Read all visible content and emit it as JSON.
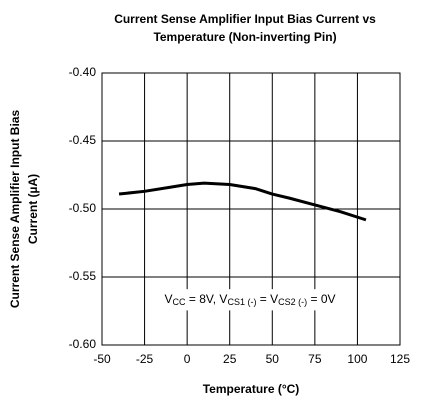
{
  "chart_data": {
    "type": "line",
    "title": [
      "Current Sense Amplifier Input Bias Current vs",
      "Temperature (Non-inverting Pin)"
    ],
    "ylabel": [
      "Current Sense Amplifier Input Bias",
      "Current (µA)"
    ],
    "xlabel": "Temperature (°C)",
    "annotation": [
      "V",
      "CC",
      " = 8V, V",
      "CS1 (-)",
      " = V",
      "CS2 (-)",
      " = 0V"
    ],
    "x": [
      -40,
      -25,
      -10,
      0,
      10,
      25,
      40,
      50,
      60,
      75,
      90,
      105
    ],
    "series": [
      {
        "name": "Input Bias Current",
        "color": "#000000",
        "values": [
          -0.489,
          -0.487,
          -0.484,
          -0.482,
          -0.481,
          -0.482,
          -0.485,
          -0.489,
          -0.492,
          -0.497,
          -0.502,
          -0.508
        ]
      }
    ],
    "xlim": [
      -50,
      125
    ],
    "xticks": [
      -50,
      -25,
      0,
      25,
      50,
      75,
      100,
      125
    ],
    "ylim": [
      -0.6,
      -0.4
    ],
    "yticks": [
      {
        "value": -0.6,
        "label": "-0.60"
      },
      {
        "value": -0.55,
        "label": "-0.55"
      },
      {
        "value": -0.5,
        "label": "-0.50"
      },
      {
        "value": -0.45,
        "label": "-0.45"
      },
      {
        "value": -0.4,
        "label": "-0.40"
      }
    ],
    "grid": true
  }
}
